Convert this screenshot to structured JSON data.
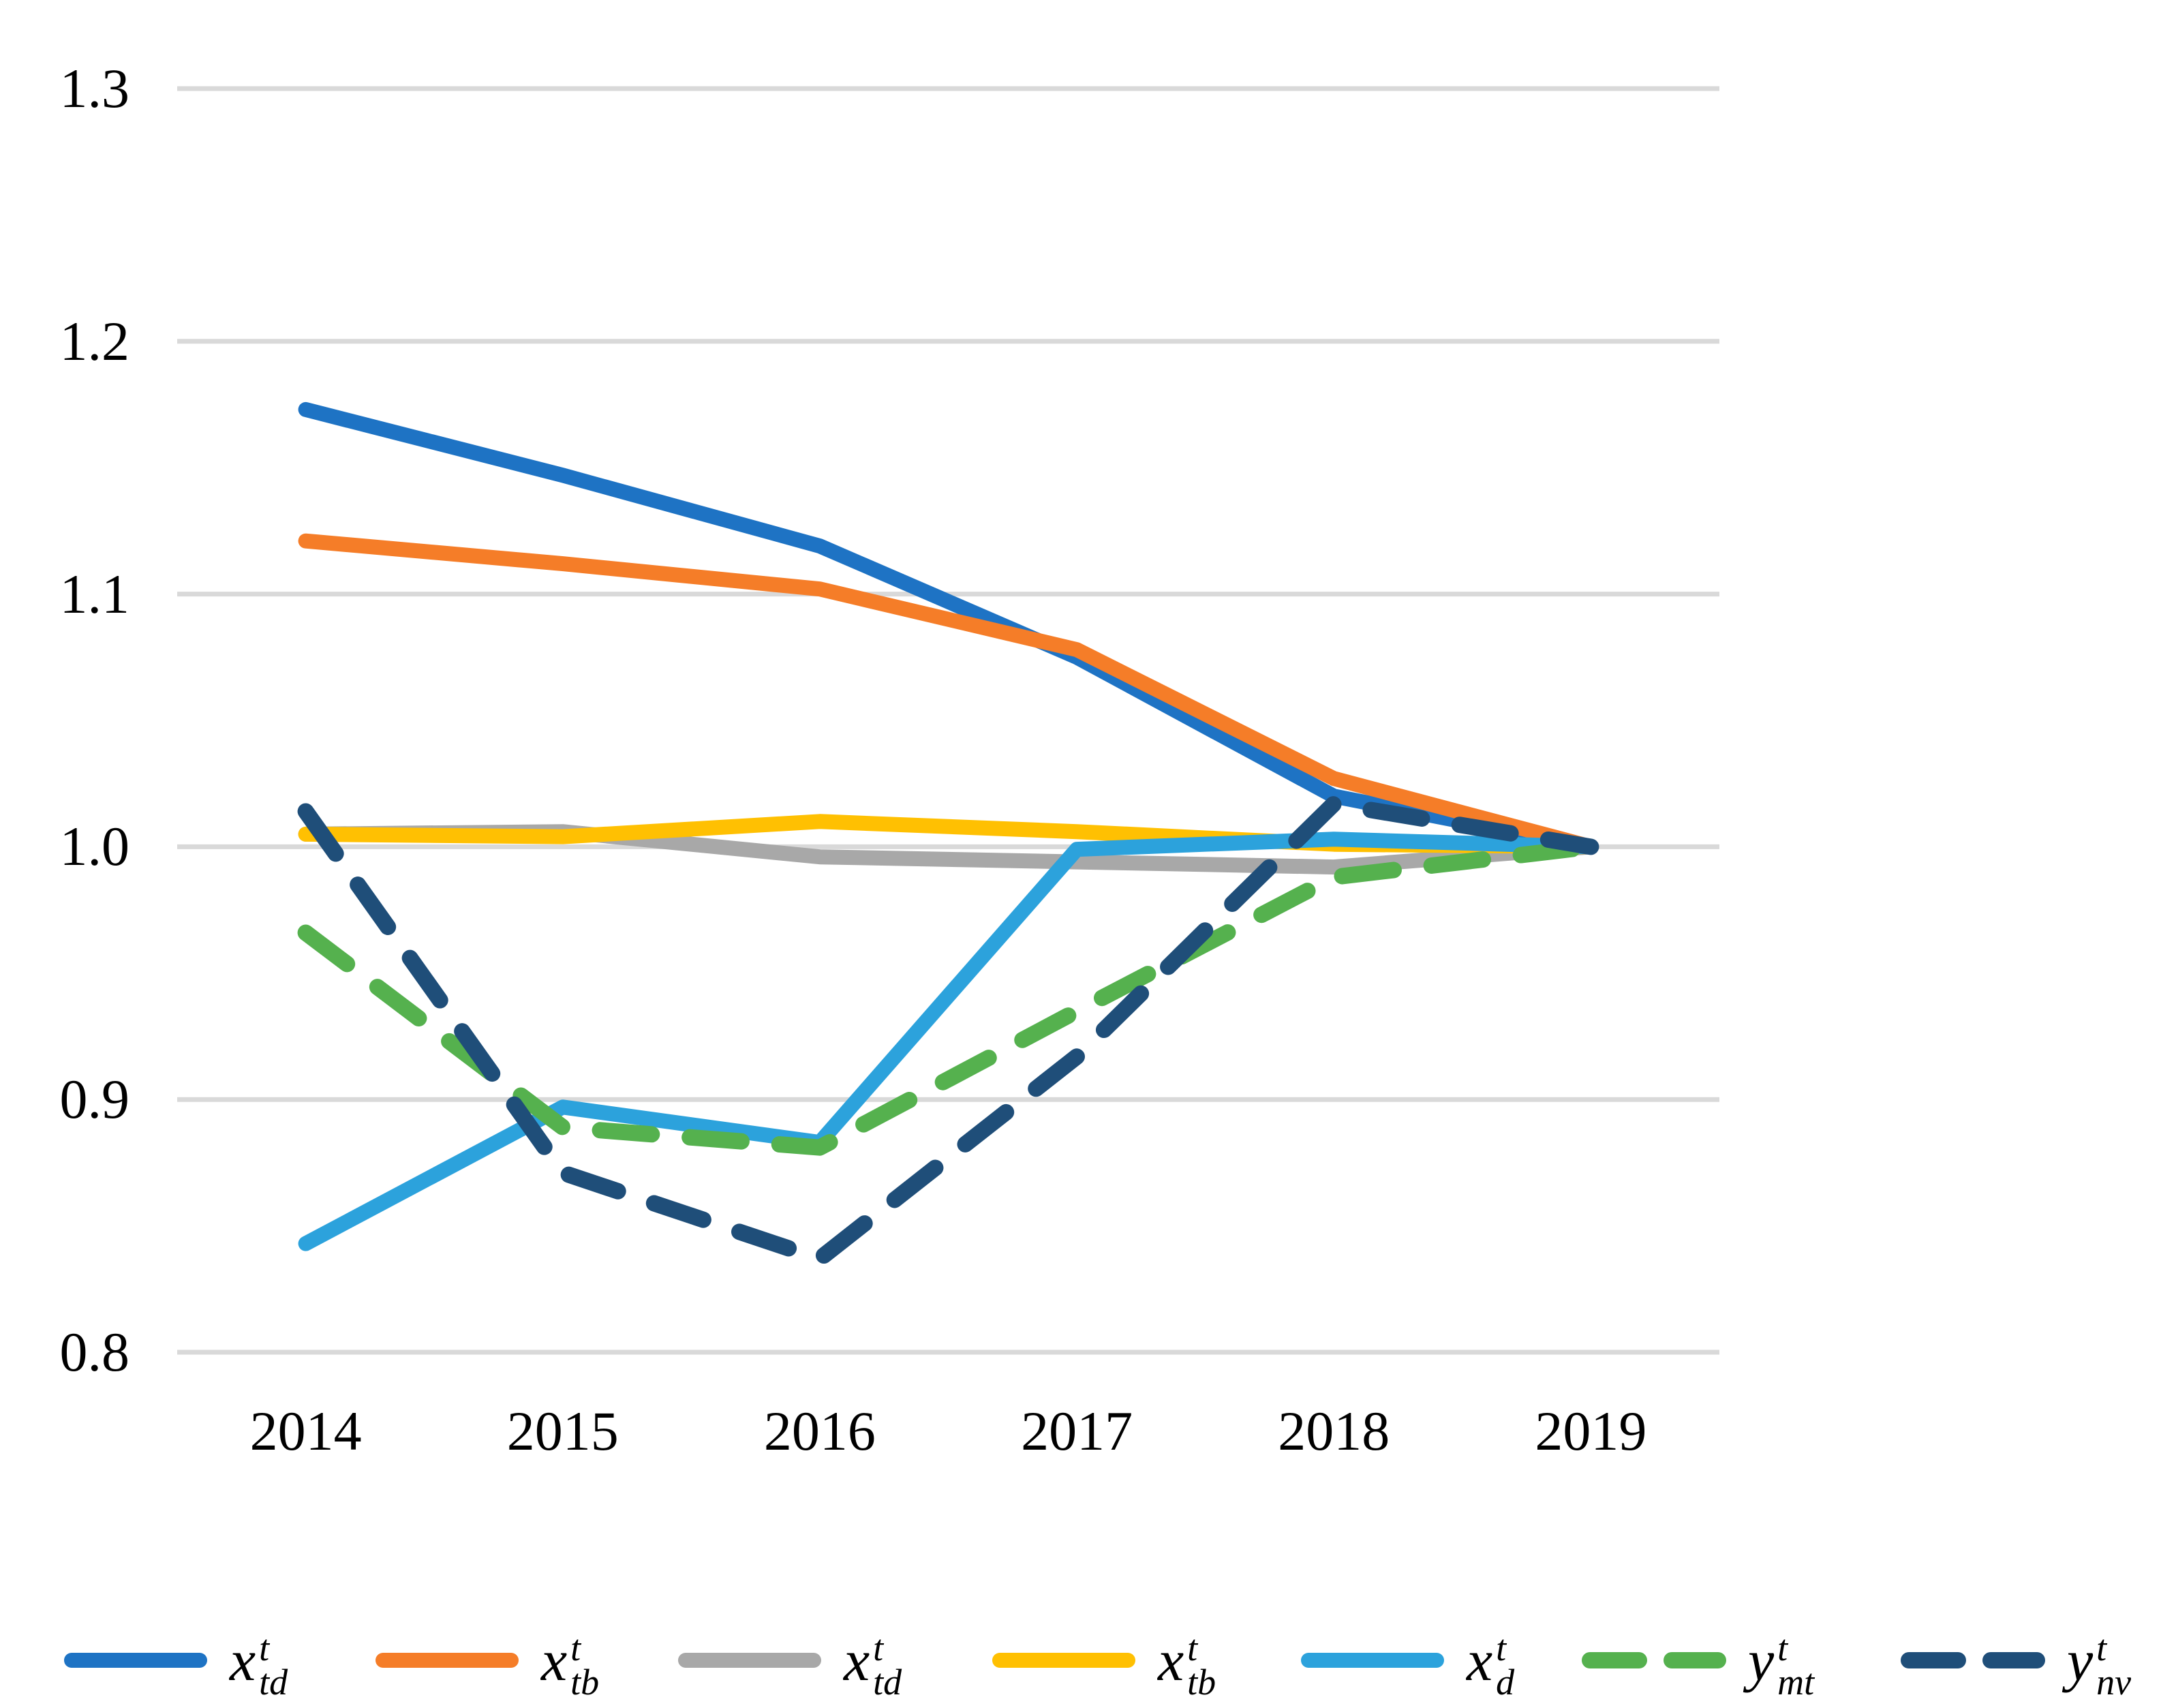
{
  "chart_data": {
    "type": "line",
    "title": "",
    "xlabel": "",
    "ylabel": "",
    "x_categories": [
      "2014",
      "2015",
      "2016",
      "2017",
      "2018",
      "2019"
    ],
    "y_tick_labels": [
      "1.3",
      "1.2",
      "1.1",
      "1.0",
      "0.9",
      "0.8"
    ],
    "ylim": [
      0.8,
      1.3
    ],
    "grid": "horizontal",
    "gridline_color": "#D9D9D9",
    "legend_position": "bottom",
    "series": [
      {
        "name": "x-td-blue",
        "label": {
          "base": "x",
          "sup": "t",
          "sub": "td"
        },
        "color": "#1E73C4",
        "dashed": false,
        "values": [
          1.173,
          1.147,
          1.119,
          1.075,
          1.02,
          1.0
        ]
      },
      {
        "name": "x-tb-orange",
        "label": {
          "base": "x",
          "sup": "t",
          "sub": "tb"
        },
        "color": "#F57D28",
        "dashed": false,
        "values": [
          1.121,
          1.112,
          1.102,
          1.078,
          1.027,
          1.0
        ]
      },
      {
        "name": "x-td-gray",
        "label": {
          "base": "x",
          "sup": "t",
          "sub": "td"
        },
        "color": "#A8A8A8",
        "dashed": false,
        "values": [
          1.005,
          1.006,
          0.996,
          0.994,
          0.992,
          1.0
        ]
      },
      {
        "name": "x-tb-yellow",
        "label": {
          "base": "x",
          "sup": "t",
          "sub": "tb"
        },
        "color": "#FFC002",
        "dashed": false,
        "values": [
          1.005,
          1.004,
          1.01,
          1.006,
          1.001,
          1.0
        ]
      },
      {
        "name": "x-d-lightblue",
        "label": {
          "base": "x",
          "sup": "t",
          "sub": "d"
        },
        "color": "#2CA2DC",
        "dashed": false,
        "values": [
          0.843,
          0.897,
          0.883,
          0.999,
          1.003,
          1.0
        ]
      },
      {
        "name": "y-mt-green",
        "label": {
          "base": "y",
          "sup": "t",
          "sub": "mt"
        },
        "color": "#55B14E",
        "dashed": true,
        "values": [
          0.966,
          0.889,
          0.881,
          0.935,
          0.988,
          1.0
        ]
      },
      {
        "name": "y-nv-navy",
        "label": {
          "base": "y",
          "sup": "t",
          "sub": "nv"
        },
        "color": "#1F4E79",
        "dashed": true,
        "values": [
          1.014,
          0.871,
          0.837,
          0.917,
          1.017,
          1.0
        ]
      }
    ]
  }
}
